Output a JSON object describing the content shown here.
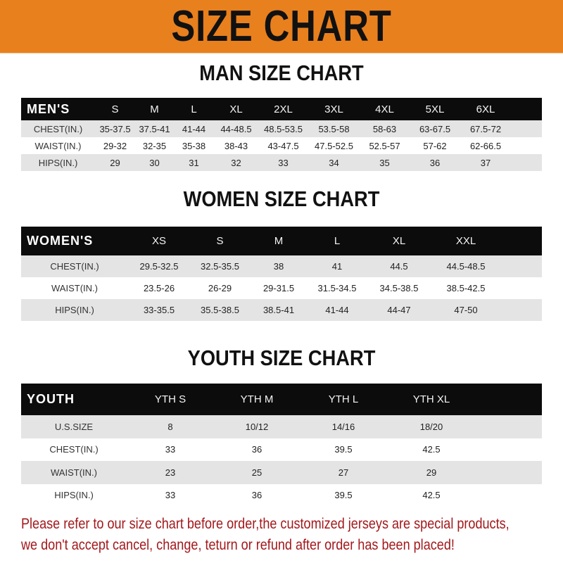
{
  "title": "SIZE CHART",
  "colors": {
    "banner": "#e8801e",
    "header_row": "#0c0c0c",
    "stripe": "#e4e4e4",
    "note": "#a3181b"
  },
  "men": {
    "title": "MAN SIZE CHART",
    "header": [
      "MEN'S",
      "S",
      "M",
      "L",
      "XL",
      "2XL",
      "3XL",
      "4XL",
      "5XL",
      "6XL"
    ],
    "rows": [
      [
        "CHEST(IN.)",
        "35-37.5",
        "37.5-41",
        "41-44",
        "44-48.5",
        "48.5-53.5",
        "53.5-58",
        "58-63",
        "63-67.5",
        "67.5-72"
      ],
      [
        "WAIST(IN.)",
        "29-32",
        "32-35",
        "35-38",
        "38-43",
        "43-47.5",
        "47.5-52.5",
        "52.5-57",
        "57-62",
        "62-66.5"
      ],
      [
        "HIPS(IN.)",
        "29",
        "30",
        "31",
        "32",
        "33",
        "34",
        "35",
        "36",
        "37"
      ]
    ]
  },
  "women": {
    "title": "WOMEN SIZE CHART",
    "header": [
      "WOMEN'S",
      "XS",
      "S",
      "M",
      "L",
      "XL",
      "XXL"
    ],
    "rows": [
      [
        "CHEST(IN.)",
        "29.5-32.5",
        "32.5-35.5",
        "38",
        "41",
        "44.5",
        "44.5-48.5"
      ],
      [
        "WAIST(IN.)",
        "23.5-26",
        "26-29",
        "29-31.5",
        "31.5-34.5",
        "34.5-38.5",
        "38.5-42.5"
      ],
      [
        "HIPS(IN.)",
        "33-35.5",
        "35.5-38.5",
        "38.5-41",
        "41-44",
        "44-47",
        "47-50"
      ]
    ]
  },
  "youth": {
    "title": "YOUTH SIZE CHART",
    "header": [
      "YOUTH",
      "YTH S",
      "YTH M",
      "YTH L",
      "YTH XL"
    ],
    "rows": [
      [
        "U.S.SIZE",
        "8",
        "10/12",
        "14/16",
        "18/20"
      ],
      [
        "CHEST(IN.)",
        "33",
        "36",
        "39.5",
        "42.5"
      ],
      [
        "WAIST(IN.)",
        "23",
        "25",
        "27",
        "29"
      ],
      [
        "HIPS(IN.)",
        "33",
        "36",
        "39.5",
        "42.5"
      ]
    ]
  },
  "note": {
    "line1": "Please refer to our size chart before order,the customized jerseys are special products,",
    "line2": "we don't accept cancel, change, teturn or refund after order has been placed!"
  }
}
